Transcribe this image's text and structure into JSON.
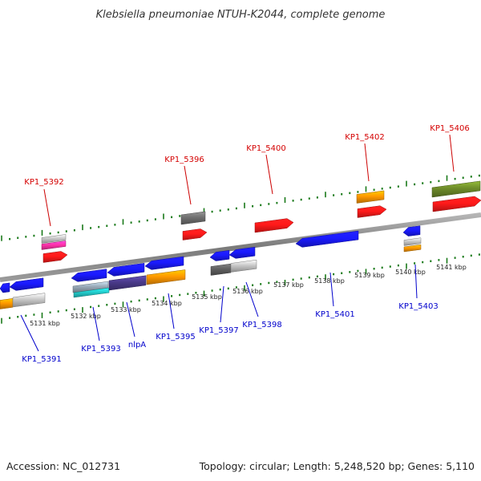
{
  "title": "Klebsiella pneumoniae NTUH-K2044, complete genome",
  "footer": {
    "accession": "Accession: NC_012731",
    "topology": "Topology: circular; Length: 5,248,520 bp; Genes: 5,110"
  },
  "colors": {
    "backbone": "#8a8a8a",
    "tick": "#1a7a1a",
    "label_top": "#d40000",
    "label_bottom": "#0000cc",
    "line_top": "#cc0000",
    "line_bottom": "#0000cc"
  },
  "kbp_labels": [
    "5131 kbp",
    "5132 kbp",
    "5133 kbp",
    "5134 kbp",
    "5135 kbp",
    "5136 kbp",
    "5137 kbp",
    "5138 kbp",
    "5139 kbp",
    "5140 kbp",
    "5141 kbp"
  ],
  "gene_labels_top": [
    "KP1_5392",
    "KP1_5396",
    "KP1_5400",
    "KP1_5402",
    "KP1_5406"
  ],
  "gene_labels_bottom": [
    "KP1_5391",
    "KP1_5393",
    "nlpA",
    "KP1_5395",
    "KP1_5397",
    "KP1_5398",
    "KP1_5401",
    "KP1_5403"
  ]
}
